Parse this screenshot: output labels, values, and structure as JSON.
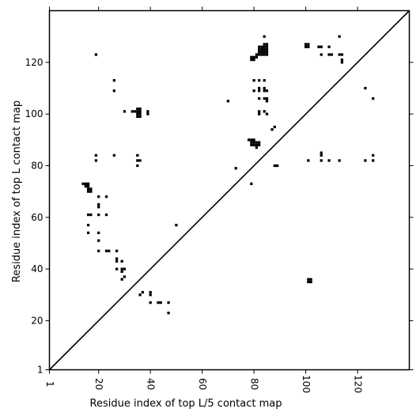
{
  "chart_data": {
    "type": "heatmap",
    "title": "",
    "xlabel": "Residue index of top L/5 contact map",
    "ylabel": "Residue index of top L contact map",
    "xlim": [
      1,
      140
    ],
    "ylim": [
      1,
      140
    ],
    "xticks": [
      "1",
      "20",
      "40",
      "60",
      "80",
      "100",
      "120"
    ],
    "yticks": [
      "1",
      "20",
      "40",
      "60",
      "80",
      "100",
      "120"
    ],
    "diagonal": true,
    "grid": false,
    "color": "#000000",
    "lower_contacts": [
      [
        14,
        73
      ],
      [
        15,
        73
      ],
      [
        16,
        73
      ],
      [
        15,
        72
      ],
      [
        16,
        72
      ],
      [
        16,
        71
      ],
      [
        17,
        71
      ],
      [
        16,
        70
      ],
      [
        17,
        70
      ],
      [
        16,
        61
      ],
      [
        17,
        61
      ],
      [
        20,
        61
      ],
      [
        23,
        61
      ],
      [
        20,
        68
      ],
      [
        23,
        68
      ],
      [
        20,
        65
      ],
      [
        20,
        64
      ],
      [
        16,
        57
      ],
      [
        16,
        54
      ],
      [
        20,
        54
      ],
      [
        20,
        51
      ],
      [
        20,
        47
      ],
      [
        23,
        47
      ],
      [
        24,
        47
      ],
      [
        27,
        47
      ],
      [
        27,
        44
      ],
      [
        27,
        43
      ],
      [
        29,
        43
      ],
      [
        27,
        40
      ],
      [
        29,
        40
      ],
      [
        30,
        40
      ],
      [
        29,
        39
      ],
      [
        30,
        37
      ],
      [
        29,
        36
      ],
      [
        36,
        30
      ],
      [
        37,
        31
      ],
      [
        40,
        31
      ],
      [
        40,
        30
      ],
      [
        40,
        27
      ],
      [
        43,
        27
      ],
      [
        44,
        27
      ],
      [
        47,
        27
      ],
      [
        47,
        23
      ],
      [
        50,
        57
      ],
      [
        101,
        36
      ],
      [
        102,
        36
      ],
      [
        101,
        35
      ],
      [
        102,
        35
      ]
    ],
    "upper_contacts": [
      [
        19,
        123
      ],
      [
        26,
        113
      ],
      [
        26,
        109
      ],
      [
        30,
        101
      ],
      [
        33,
        101
      ],
      [
        34,
        101
      ],
      [
        35,
        102
      ],
      [
        36,
        102
      ],
      [
        35,
        101
      ],
      [
        36,
        101
      ],
      [
        35,
        100
      ],
      [
        36,
        100
      ],
      [
        35,
        99
      ],
      [
        36,
        99
      ],
      [
        39,
        101
      ],
      [
        39,
        100
      ],
      [
        19,
        84
      ],
      [
        19,
        82
      ],
      [
        26,
        84
      ],
      [
        35,
        84
      ],
      [
        35,
        82
      ],
      [
        36,
        82
      ],
      [
        35,
        80
      ],
      [
        70,
        105
      ],
      [
        73,
        79
      ],
      [
        79,
        73
      ],
      [
        79,
        122
      ],
      [
        80,
        122
      ],
      [
        81,
        122
      ],
      [
        79,
        121
      ],
      [
        80,
        121
      ],
      [
        81,
        123
      ],
      [
        82,
        123
      ],
      [
        83,
        123
      ],
      [
        82,
        124
      ],
      [
        83,
        124
      ],
      [
        84,
        124
      ],
      [
        85,
        124
      ],
      [
        82,
        125
      ],
      [
        83,
        125
      ],
      [
        84,
        125
      ],
      [
        85,
        125
      ],
      [
        82,
        126
      ],
      [
        83,
        126
      ],
      [
        84,
        126
      ],
      [
        85,
        126
      ],
      [
        84,
        127
      ],
      [
        85,
        127
      ],
      [
        84,
        130
      ],
      [
        84,
        123
      ],
      [
        85,
        123
      ],
      [
        80,
        113
      ],
      [
        82,
        113
      ],
      [
        84,
        113
      ],
      [
        80,
        109
      ],
      [
        82,
        109
      ],
      [
        84,
        109
      ],
      [
        85,
        109
      ],
      [
        82,
        110
      ],
      [
        84,
        110
      ],
      [
        82,
        106
      ],
      [
        84,
        106
      ],
      [
        85,
        106
      ],
      [
        85,
        105
      ],
      [
        82,
        101
      ],
      [
        84,
        101
      ],
      [
        82,
        100
      ],
      [
        85,
        100
      ],
      [
        78,
        90
      ],
      [
        79,
        90
      ],
      [
        80,
        90
      ],
      [
        79,
        89
      ],
      [
        80,
        89
      ],
      [
        81,
        89
      ],
      [
        82,
        89
      ],
      [
        79,
        88
      ],
      [
        80,
        88
      ],
      [
        81,
        88
      ],
      [
        82,
        88
      ],
      [
        81,
        87
      ],
      [
        87,
        94
      ],
      [
        88,
        95
      ],
      [
        88,
        80
      ],
      [
        89,
        80
      ],
      [
        101,
        82
      ],
      [
        100,
        126
      ],
      [
        101,
        126
      ],
      [
        100,
        127
      ],
      [
        101,
        127
      ],
      [
        105,
        126
      ],
      [
        106,
        126
      ],
      [
        109,
        126
      ],
      [
        106,
        123
      ],
      [
        109,
        123
      ],
      [
        110,
        123
      ],
      [
        113,
        123
      ],
      [
        114,
        123
      ],
      [
        114,
        121
      ],
      [
        114,
        120
      ],
      [
        113,
        130
      ],
      [
        106,
        85
      ],
      [
        106,
        84
      ],
      [
        106,
        82
      ],
      [
        109,
        82
      ],
      [
        113,
        82
      ],
      [
        123,
        110
      ],
      [
        126,
        106
      ],
      [
        123,
        82
      ],
      [
        126,
        82
      ],
      [
        126,
        84
      ]
    ]
  }
}
